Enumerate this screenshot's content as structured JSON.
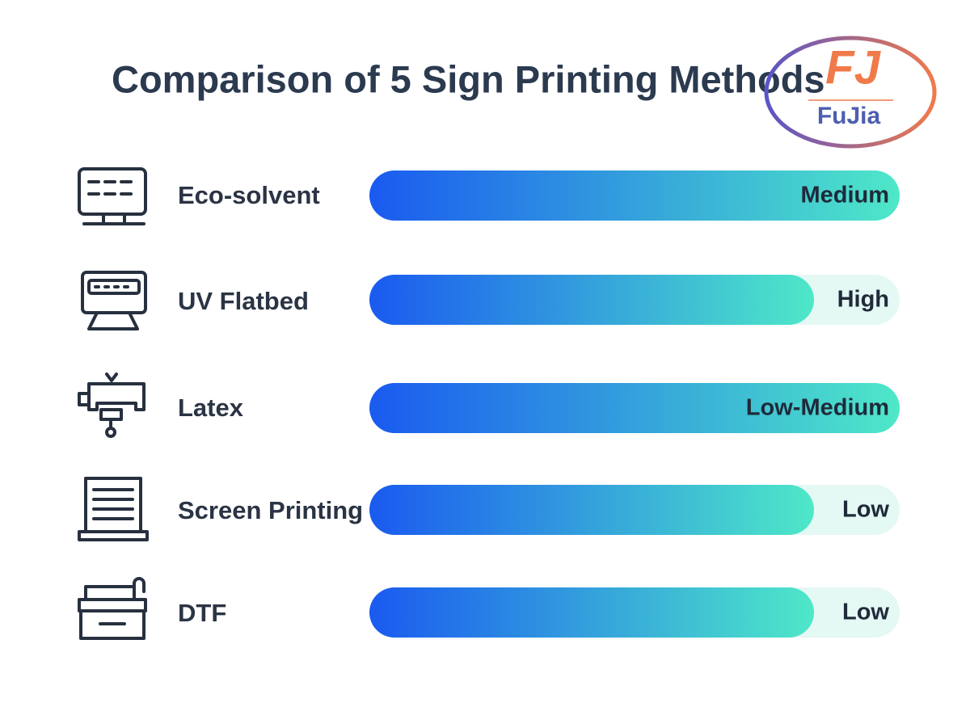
{
  "header": {
    "title": "Comparison of 5 Sign Printing Methods"
  },
  "logo": {
    "mark": "FJ",
    "name": "FuJia"
  },
  "rows": [
    {
      "label": "Eco-solvent",
      "level": "Medium"
    },
    {
      "label": "UV Flatbed",
      "level": "High"
    },
    {
      "label": "Latex",
      "level": "Low-Medium"
    },
    {
      "label": "Screen Printing",
      "level": "Low"
    },
    {
      "label": "DTF",
      "level": "Low"
    }
  ]
}
